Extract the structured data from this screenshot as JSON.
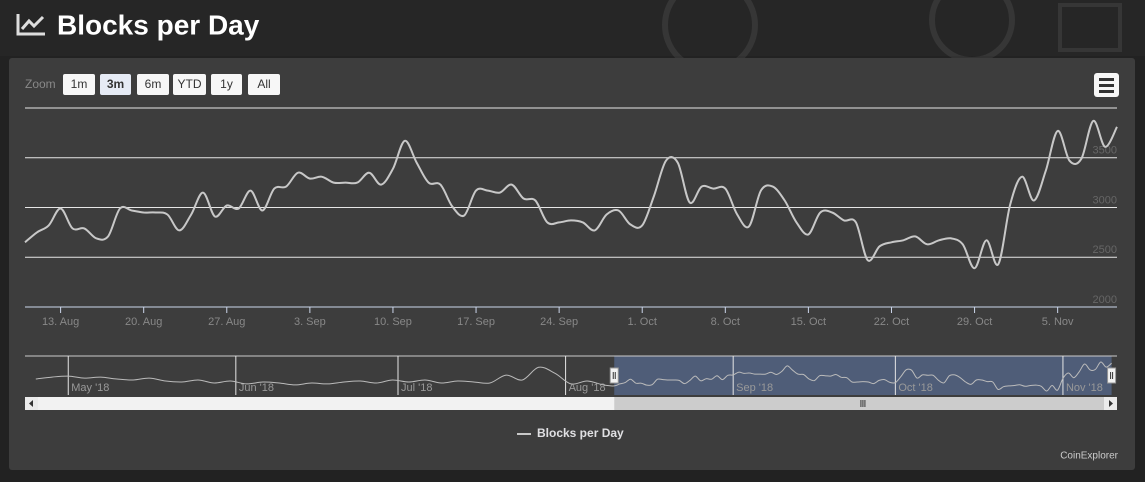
{
  "header": {
    "title": "Blocks per Day"
  },
  "chart_data": {
    "type": "line",
    "zoom_label": "Zoom",
    "zoom_buttons": [
      "1m",
      "3m",
      "6m",
      "YTD",
      "1y",
      "All"
    ],
    "selected_zoom": 1,
    "series": [
      {
        "name": "Blocks per Day",
        "color": "#c8c8c8",
        "x": [
          "2018-08-10",
          "2018-08-11",
          "2018-08-12",
          "2018-08-13",
          "2018-08-14",
          "2018-08-15",
          "2018-08-16",
          "2018-08-17",
          "2018-08-18",
          "2018-08-19",
          "2018-08-20",
          "2018-08-21",
          "2018-08-22",
          "2018-08-23",
          "2018-08-24",
          "2018-08-25",
          "2018-08-26",
          "2018-08-27",
          "2018-08-28",
          "2018-08-29",
          "2018-08-30",
          "2018-08-31",
          "2018-09-01",
          "2018-09-02",
          "2018-09-03",
          "2018-09-04",
          "2018-09-05",
          "2018-09-06",
          "2018-09-07",
          "2018-09-08",
          "2018-09-09",
          "2018-09-10",
          "2018-09-11",
          "2018-09-12",
          "2018-09-13",
          "2018-09-14",
          "2018-09-15",
          "2018-09-16",
          "2018-09-17",
          "2018-09-18",
          "2018-09-19",
          "2018-09-20",
          "2018-09-21",
          "2018-09-22",
          "2018-09-23",
          "2018-09-24",
          "2018-09-25",
          "2018-09-26",
          "2018-09-27",
          "2018-09-28",
          "2018-09-29",
          "2018-09-30",
          "2018-10-01",
          "2018-10-02",
          "2018-10-03",
          "2018-10-04",
          "2018-10-05",
          "2018-10-06",
          "2018-10-07",
          "2018-10-08",
          "2018-10-09",
          "2018-10-10",
          "2018-10-11",
          "2018-10-12",
          "2018-10-13",
          "2018-10-14",
          "2018-10-15",
          "2018-10-16",
          "2018-10-17",
          "2018-10-18",
          "2018-10-19",
          "2018-10-20",
          "2018-10-21",
          "2018-10-22",
          "2018-10-23",
          "2018-10-24",
          "2018-10-25",
          "2018-10-26",
          "2018-10-27",
          "2018-10-28",
          "2018-10-29",
          "2018-10-30",
          "2018-10-31",
          "2018-11-01",
          "2018-11-02",
          "2018-11-03",
          "2018-11-04",
          "2018-11-05",
          "2018-11-06",
          "2018-11-07",
          "2018-11-08",
          "2018-11-09",
          "2018-11-10"
        ],
        "values": [
          2650,
          2750,
          2820,
          2990,
          2790,
          2790,
          2690,
          2710,
          2990,
          2970,
          2950,
          2950,
          2930,
          2770,
          2930,
          3150,
          2910,
          3020,
          2990,
          3170,
          2970,
          3190,
          3210,
          3350,
          3290,
          3310,
          3250,
          3250,
          3250,
          3350,
          3230,
          3390,
          3670,
          3450,
          3250,
          3230,
          3010,
          2920,
          3170,
          3170,
          3150,
          3230,
          3090,
          3070,
          2850,
          2850,
          2870,
          2850,
          2770,
          2930,
          2970,
          2830,
          2820,
          3120,
          3470,
          3450,
          3050,
          3210,
          3190,
          3190,
          2930,
          2810,
          3170,
          3210,
          3070,
          2850,
          2730,
          2950,
          2950,
          2870,
          2850,
          2470,
          2610,
          2650,
          2670,
          2710,
          2630,
          2670,
          2690,
          2630,
          2390,
          2670,
          2430,
          3030,
          3310,
          3070,
          3370,
          3770,
          3470,
          3490,
          3870,
          3610,
          3810
        ]
      }
    ],
    "xlim": [
      "2018-08-10",
      "2018-11-10"
    ],
    "xticks": [
      {
        "value": "2018-08-13",
        "label": "13. Aug"
      },
      {
        "value": "2018-08-20",
        "label": "20. Aug"
      },
      {
        "value": "2018-08-27",
        "label": "27. Aug"
      },
      {
        "value": "2018-09-03",
        "label": "3. Sep"
      },
      {
        "value": "2018-09-10",
        "label": "10. Sep"
      },
      {
        "value": "2018-09-17",
        "label": "17. Sep"
      },
      {
        "value": "2018-09-24",
        "label": "24. Sep"
      },
      {
        "value": "2018-10-01",
        "label": "1. Oct"
      },
      {
        "value": "2018-10-08",
        "label": "8. Oct"
      },
      {
        "value": "2018-10-15",
        "label": "15. Oct"
      },
      {
        "value": "2018-10-22",
        "label": "22. Oct"
      },
      {
        "value": "2018-10-29",
        "label": "29. Oct"
      },
      {
        "value": "2018-11-05",
        "label": "5. Nov"
      }
    ],
    "ylim": [
      2000,
      4000
    ],
    "yticks": [
      2000,
      2500,
      3000,
      3500
    ],
    "grid": true,
    "legend": "bottom",
    "navigator": {
      "x": [
        "2018-04-25",
        "2018-04-28",
        "2018-05-01",
        "2018-05-04",
        "2018-05-07",
        "2018-05-10",
        "2018-05-13",
        "2018-05-16",
        "2018-05-19",
        "2018-05-22",
        "2018-05-25",
        "2018-05-28",
        "2018-05-31",
        "2018-06-03",
        "2018-06-06",
        "2018-06-09",
        "2018-06-12",
        "2018-06-15",
        "2018-06-18",
        "2018-06-21",
        "2018-06-24",
        "2018-06-27",
        "2018-06-30",
        "2018-07-03",
        "2018-07-06",
        "2018-07-09",
        "2018-07-12",
        "2018-07-15",
        "2018-07-18",
        "2018-07-21",
        "2018-07-24",
        "2018-07-27",
        "2018-07-30",
        "2018-08-02",
        "2018-08-05",
        "2018-08-08"
      ],
      "values": [
        3000,
        3100,
        3150,
        3050,
        3100,
        3000,
        2950,
        3050,
        2900,
        2850,
        2950,
        2800,
        2900,
        2750,
        2850,
        2800,
        2700,
        2800,
        2750,
        2850,
        2900,
        2800,
        2950,
        2850,
        2950,
        2800,
        2900,
        2850,
        2800,
        3200,
        2950,
        3600,
        3300,
        2750,
        2900,
        2700
      ],
      "xlim": [
        "2018-04-23",
        "2018-11-11"
      ],
      "ticks": [
        {
          "value": "2018-05-01",
          "label": "May '18"
        },
        {
          "value": "2018-06-01",
          "label": "Jun '18"
        },
        {
          "value": "2018-07-01",
          "label": "Jul '18"
        },
        {
          "value": "2018-08-01",
          "label": "Aug '18"
        },
        {
          "value": "2018-09-01",
          "label": "Sep '18"
        },
        {
          "value": "2018-10-01",
          "label": "Oct '18"
        },
        {
          "value": "2018-11-01",
          "label": "Nov '18"
        }
      ]
    },
    "credits": "CoinExplorer"
  }
}
